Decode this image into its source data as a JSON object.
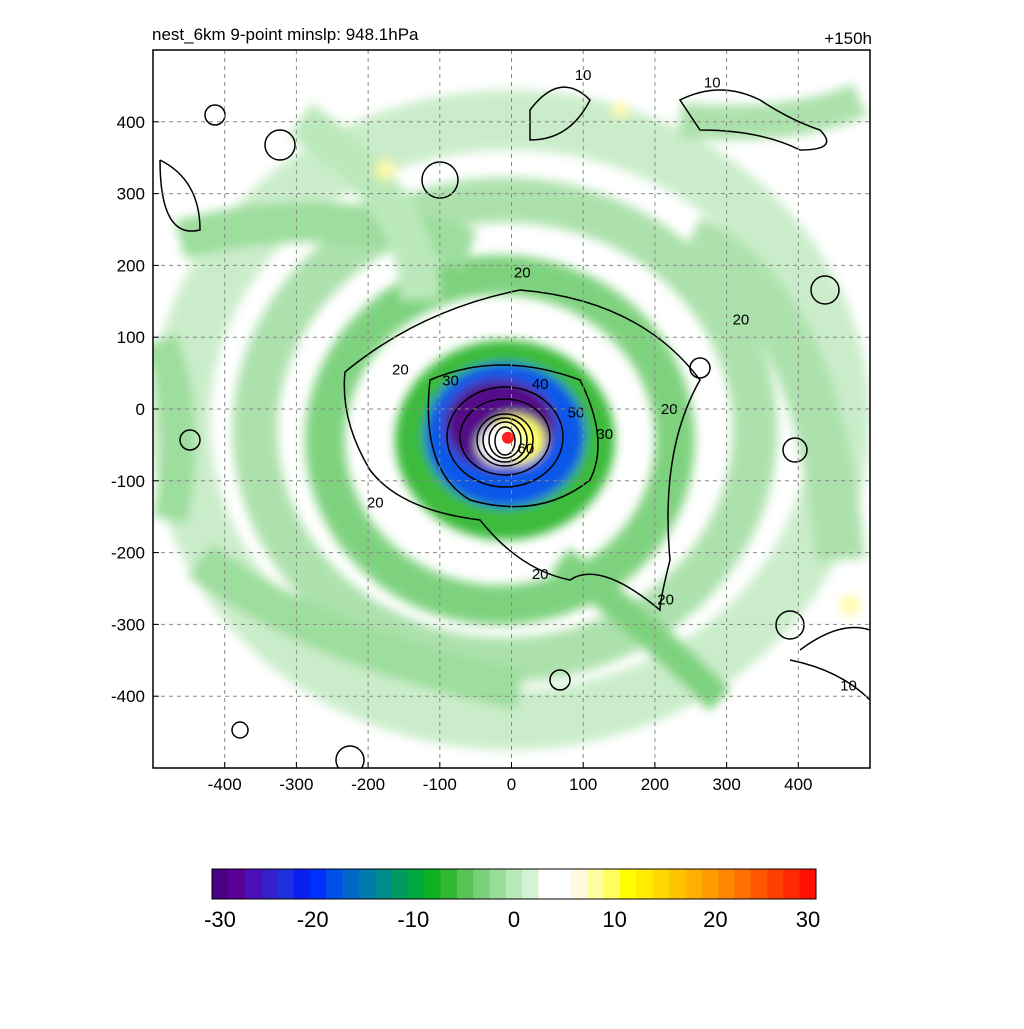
{
  "header": {
    "left_title": "nest_6km  9-point minslp: 948.1hPa",
    "right_title": "+150h"
  },
  "chart_data": {
    "type": "heatmap",
    "x_range": [
      -500,
      500
    ],
    "y_range": [
      -500,
      500
    ],
    "x_ticks": [
      -400,
      -300,
      -200,
      -100,
      0,
      100,
      200,
      300,
      400
    ],
    "y_ticks": [
      400,
      300,
      200,
      100,
      0,
      -100,
      -200,
      -300,
      -400
    ],
    "grid": true,
    "center_marker": {
      "x": -5,
      "y": -40,
      "color": "#ff2020"
    },
    "contour_labels": [
      {
        "text": "10",
        "x": 100,
        "y": 465
      },
      {
        "text": "10",
        "x": 280,
        "y": 455
      },
      {
        "text": "20",
        "x": 15,
        "y": 190
      },
      {
        "text": "20",
        "x": 320,
        "y": 125
      },
      {
        "text": "20",
        "x": -155,
        "y": 55
      },
      {
        "text": "30",
        "x": -85,
        "y": 40
      },
      {
        "text": "40",
        "x": 40,
        "y": 35
      },
      {
        "text": "50",
        "x": 90,
        "y": -5
      },
      {
        "text": "30",
        "x": 130,
        "y": -35
      },
      {
        "text": "20",
        "x": 220,
        "y": 0
      },
      {
        "text": "60",
        "x": 20,
        "y": -55
      },
      {
        "text": "20",
        "x": -190,
        "y": -130
      },
      {
        "text": "20",
        "x": 40,
        "y": -230
      },
      {
        "text": "20",
        "x": 215,
        "y": -265
      },
      {
        "text": "10",
        "x": 470,
        "y": -385
      }
    ],
    "colorbar": {
      "min": -30,
      "max": 30,
      "tick_labels": [
        "-30",
        "-20",
        "-10",
        "0",
        "10",
        "20",
        "30"
      ],
      "colors": [
        "#4b0082",
        "#5a0099",
        "#4a10b5",
        "#3520cc",
        "#2030e0",
        "#0a20f0",
        "#0030ff",
        "#0050e8",
        "#0068c8",
        "#007aa8",
        "#008a88",
        "#009a60",
        "#00a840",
        "#10b020",
        "#30b830",
        "#55c455",
        "#78d078",
        "#98dc98",
        "#b8e8b8",
        "#d4f2d4",
        "#ffffff",
        "#ffffff",
        "#fffae0",
        "#ffffa0",
        "#ffff60",
        "#ffff00",
        "#ffec00",
        "#ffd800",
        "#ffc400",
        "#ffb000",
        "#ff9c00",
        "#ff8800",
        "#ff7000",
        "#ff5800",
        "#ff4000",
        "#ff2800",
        "#ff1000"
      ]
    }
  }
}
